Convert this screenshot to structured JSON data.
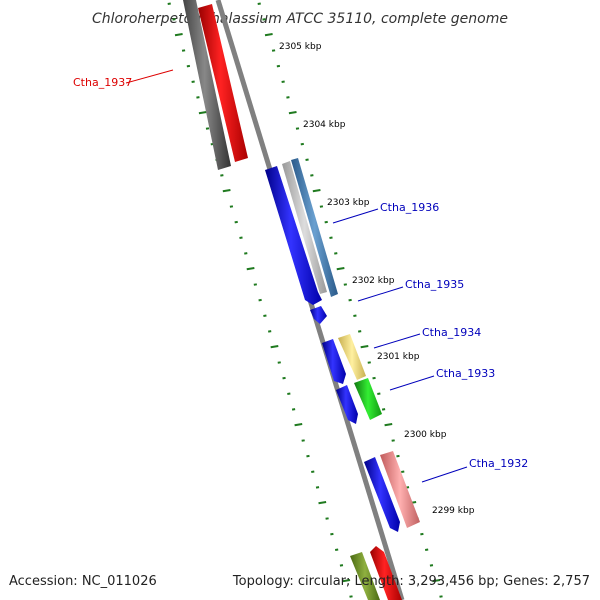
{
  "title": "Chloroherpeton thalassium ATCC 35110, complete genome",
  "footer": {
    "accession": "Accession: NC_011026",
    "topology": "Topology: circular; Length: 3,293,456 bp; Genes: 2,757"
  },
  "colors": {
    "backbone": "#777777",
    "ruler": "#1f7a1f",
    "gene_forward": "#0000ee",
    "gene_reverse_highlight": "#ff0000",
    "label_forward": "#0000bb",
    "label_highlight": "#dd0000"
  },
  "ticks": [
    {
      "label": "2305 kbp"
    },
    {
      "label": "2304 kbp"
    },
    {
      "label": "2303 kbp"
    },
    {
      "label": "2302 kbp"
    },
    {
      "label": "2301 kbp"
    },
    {
      "label": "2300 kbp"
    },
    {
      "label": "2299 kbp"
    }
  ],
  "gene_labels": [
    {
      "name": "Ctha_1937"
    },
    {
      "name": "Ctha_1936"
    },
    {
      "name": "Ctha_1935"
    },
    {
      "name": "Ctha_1934"
    },
    {
      "name": "Ctha_1933"
    },
    {
      "name": "Ctha_1932"
    }
  ]
}
